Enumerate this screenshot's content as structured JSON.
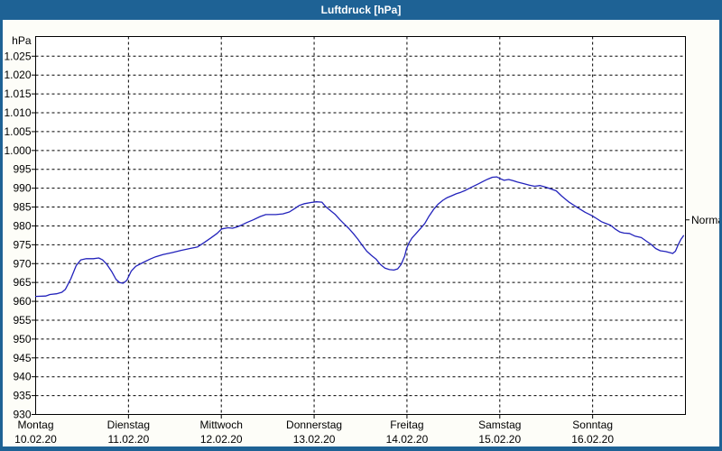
{
  "window": {
    "title": "Luftdruck [hPa]"
  },
  "colors": {
    "titlebar": "#1e6295",
    "frame": "#1e6295",
    "background": "#fdfdf8",
    "plot_bg": "#ffffff",
    "grid": "#000000",
    "text": "#000000",
    "curve": "#2222bb"
  },
  "chart_data": {
    "type": "line",
    "title": "Luftdruck [hPa]",
    "unit_label": "hPa",
    "grid": "dashed",
    "ylim": [
      930,
      1030
    ],
    "y_tick_values": [
      1025,
      1020,
      1015,
      1010,
      1005,
      1000,
      995,
      990,
      985,
      980,
      975,
      970,
      965,
      960,
      955,
      950,
      945,
      940,
      935,
      930
    ],
    "y_tick_labels": [
      "1.025",
      "1.020",
      "1.015",
      "1.010",
      "1.005",
      "1.000",
      "995",
      "990",
      "985",
      "980",
      "975",
      "970",
      "965",
      "960",
      "955",
      "950",
      "945",
      "940",
      "935",
      "930"
    ],
    "x_range_hours": [
      0,
      168
    ],
    "x_axis_days": [
      {
        "name": "Montag",
        "date": "10.02.20"
      },
      {
        "name": "Dienstag",
        "date": "11.02.20"
      },
      {
        "name": "Mittwoch",
        "date": "12.02.20"
      },
      {
        "name": "Donnerstag",
        "date": "13.02.20"
      },
      {
        "name": "Freitag",
        "date": "14.02.20"
      },
      {
        "name": "Samstag",
        "date": "15.02.20"
      },
      {
        "name": "Sonntag",
        "date": "16.02.20"
      }
    ],
    "annotations": [
      {
        "label": "Normal",
        "value_hpa": 981.6,
        "side": "right"
      }
    ],
    "series": [
      {
        "name": "Luftdruck",
        "points_hour_hpa": [
          [
            0,
            961.3
          ],
          [
            2.6,
            961.4
          ],
          [
            3.7,
            961.8
          ],
          [
            5.4,
            962
          ],
          [
            6.8,
            962.4
          ],
          [
            7.7,
            963.2
          ],
          [
            9.1,
            966
          ],
          [
            10.5,
            969.5
          ],
          [
            11.7,
            971
          ],
          [
            13.1,
            971.3
          ],
          [
            14.9,
            971.3
          ],
          [
            16.3,
            971.5
          ],
          [
            17.3,
            971
          ],
          [
            18.4,
            969.8
          ],
          [
            19.6,
            968
          ],
          [
            20.8,
            965.8
          ],
          [
            21.7,
            965
          ],
          [
            22.6,
            964.8
          ],
          [
            23.6,
            965.6
          ],
          [
            24,
            966.5
          ],
          [
            24.7,
            968
          ],
          [
            25.9,
            969.3
          ],
          [
            27.8,
            970.3
          ],
          [
            29.6,
            971.2
          ],
          [
            31,
            971.8
          ],
          [
            32.9,
            972.4
          ],
          [
            35.2,
            972.9
          ],
          [
            37.6,
            973.5
          ],
          [
            39.9,
            974
          ],
          [
            41.8,
            974.4
          ],
          [
            43.6,
            975.6
          ],
          [
            45.3,
            976.8
          ],
          [
            46.9,
            978
          ],
          [
            48.1,
            979.2
          ],
          [
            49.7,
            979.5
          ],
          [
            50.9,
            979.4
          ],
          [
            52,
            979.7
          ],
          [
            53.2,
            980.2
          ],
          [
            54.6,
            980.9
          ],
          [
            56.2,
            981.6
          ],
          [
            58.1,
            982.5
          ],
          [
            59.5,
            983
          ],
          [
            62.1,
            983
          ],
          [
            63.9,
            983.2
          ],
          [
            65.6,
            983.7
          ],
          [
            67,
            984.6
          ],
          [
            68.1,
            985.4
          ],
          [
            69.5,
            985.9
          ],
          [
            71.2,
            986.2
          ],
          [
            72.6,
            986.4
          ],
          [
            74,
            986.3
          ],
          [
            74.9,
            985.2
          ],
          [
            76.3,
            984
          ],
          [
            77.5,
            983
          ],
          [
            78.6,
            981.7
          ],
          [
            79.8,
            980.5
          ],
          [
            81,
            979.3
          ],
          [
            82.1,
            978
          ],
          [
            83.3,
            976.5
          ],
          [
            84.5,
            974.8
          ],
          [
            85.6,
            973.3
          ],
          [
            86.8,
            972.2
          ],
          [
            88,
            971.2
          ],
          [
            89.1,
            969.8
          ],
          [
            90.3,
            968.8
          ],
          [
            91.5,
            968.4
          ],
          [
            92.6,
            968.3
          ],
          [
            93.6,
            968.6
          ],
          [
            94.5,
            969.8
          ],
          [
            95.4,
            972
          ],
          [
            95.9,
            974
          ],
          [
            96.6,
            975.6
          ],
          [
            97.3,
            976.8
          ],
          [
            98.2,
            977.8
          ],
          [
            99.4,
            979.2
          ],
          [
            100.6,
            980.6
          ],
          [
            101.7,
            982.6
          ],
          [
            102.9,
            984.4
          ],
          [
            104.1,
            985.8
          ],
          [
            105.3,
            986.8
          ],
          [
            106.4,
            987.5
          ],
          [
            107.6,
            988
          ],
          [
            108.7,
            988.5
          ],
          [
            109.9,
            988.9
          ],
          [
            111.1,
            989.4
          ],
          [
            112.2,
            990
          ],
          [
            113.4,
            990.6
          ],
          [
            114.6,
            991.2
          ],
          [
            115.7,
            991.8
          ],
          [
            116.9,
            992.4
          ],
          [
            118.1,
            992.9
          ],
          [
            119.2,
            993
          ],
          [
            120.2,
            992.5
          ],
          [
            121.1,
            992.1
          ],
          [
            122.3,
            992.3
          ],
          [
            123.4,
            992
          ],
          [
            124.6,
            991.6
          ],
          [
            126.2,
            991.2
          ],
          [
            127.6,
            990.8
          ],
          [
            129,
            990.5
          ],
          [
            130.4,
            990.7
          ],
          [
            131.8,
            990.3
          ],
          [
            133.2,
            989.8
          ],
          [
            134.6,
            989.3
          ],
          [
            136,
            987.9
          ],
          [
            137.9,
            986.3
          ],
          [
            140.2,
            984.8
          ],
          [
            142.1,
            983.6
          ],
          [
            143.3,
            983
          ],
          [
            144,
            982.6
          ],
          [
            145.1,
            981.9
          ],
          [
            146.3,
            981.1
          ],
          [
            147.5,
            980.6
          ],
          [
            148.6,
            980.2
          ],
          [
            149.8,
            979.2
          ],
          [
            151,
            978.4
          ],
          [
            152.1,
            978.1
          ],
          [
            153.5,
            978
          ],
          [
            154.9,
            977.3
          ],
          [
            156.6,
            976.9
          ],
          [
            158,
            975.9
          ],
          [
            159.1,
            975.1
          ],
          [
            160.3,
            974
          ],
          [
            161.5,
            973.4
          ],
          [
            162.9,
            973.2
          ],
          [
            164,
            972.9
          ],
          [
            164.7,
            972.7
          ],
          [
            165.4,
            973.3
          ],
          [
            166.1,
            975
          ],
          [
            166.8,
            976.4
          ],
          [
            167.5,
            977.4
          ]
        ]
      }
    ]
  }
}
